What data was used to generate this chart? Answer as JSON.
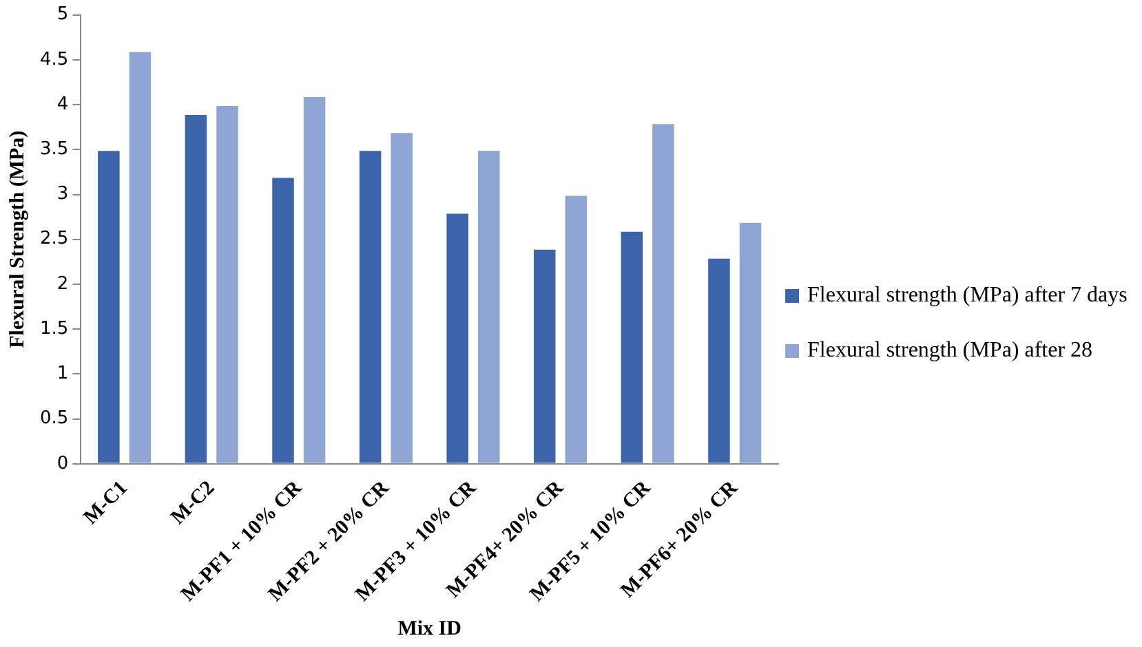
{
  "chart_data": {
    "type": "bar",
    "xlabel": "Mix ID",
    "ylabel": "Flexural Strength (MPa)",
    "categories": [
      "M-C1",
      "M-C2",
      "M-PF1 + 10% CR",
      "M-PF2 + 20% CR",
      "M-PF3 + 10% CR",
      "M-PF4+ 20% CR",
      "M-PF5 + 10% CR",
      "M-PF6+ 20% CR"
    ],
    "series": [
      {
        "name": "Flexural strength (MPa) after 7 days",
        "color": "#3c64ab",
        "values": [
          3.5,
          3.9,
          3.2,
          3.5,
          2.8,
          2.4,
          2.6,
          2.3
        ]
      },
      {
        "name": "Flexural strength (MPa) after 28",
        "color": "#8fa5d4",
        "values": [
          4.6,
          4.0,
          4.1,
          3.7,
          3.5,
          3.0,
          3.8,
          2.7
        ]
      }
    ],
    "ylim": [
      0,
      5
    ],
    "yticks": [
      0,
      0.5,
      1,
      1.5,
      2,
      2.5,
      3,
      3.5,
      4,
      4.5,
      5
    ],
    "grid": false,
    "legend": "right"
  }
}
